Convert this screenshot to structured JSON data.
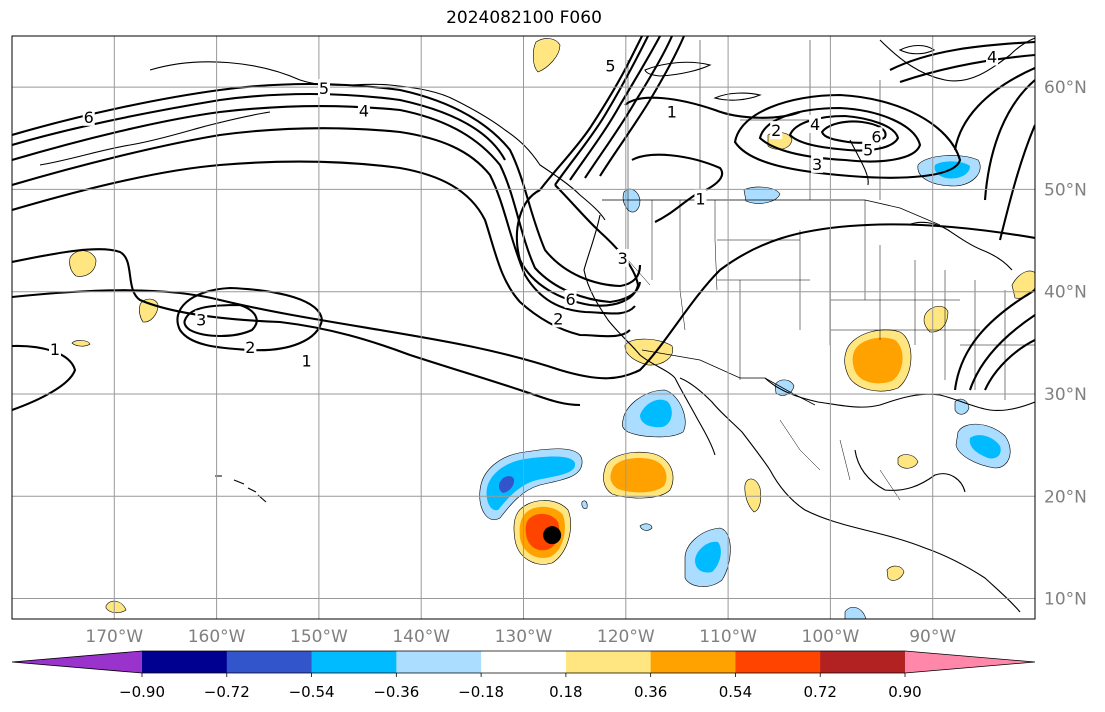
{
  "title": "2024082100 F060",
  "map": {
    "projection": "plate-carree",
    "lon_range": [
      -180,
      -80
    ],
    "lat_range": [
      8,
      65
    ],
    "lon_ticks": [
      {
        "lon": -170,
        "label": "170°W"
      },
      {
        "lon": -160,
        "label": "160°W"
      },
      {
        "lon": -150,
        "label": "150°W"
      },
      {
        "lon": -140,
        "label": "140°W"
      },
      {
        "lon": -130,
        "label": "130°W"
      },
      {
        "lon": -120,
        "label": "120°W"
      },
      {
        "lon": -110,
        "label": "110°W"
      },
      {
        "lon": -100,
        "label": "100°W"
      },
      {
        "lon": -90,
        "label": "90°W"
      }
    ],
    "lat_ticks": [
      {
        "lat": 60,
        "label": "60°N"
      },
      {
        "lat": 50,
        "label": "50°N"
      },
      {
        "lat": 40,
        "label": "40°N"
      },
      {
        "lat": 30,
        "label": "30°N"
      },
      {
        "lat": 20,
        "label": "20°N"
      },
      {
        "lat": 10,
        "label": "10°N"
      }
    ],
    "gridlines": true,
    "contour_labels": [
      {
        "text": "6",
        "lon": -172.5,
        "lat": 57
      },
      {
        "text": "5",
        "lon": -149.5,
        "lat": 59.8
      },
      {
        "text": "4",
        "lon": -145.6,
        "lat": 57.6
      },
      {
        "text": "5",
        "lon": -121.5,
        "lat": 62
      },
      {
        "text": "1",
        "lon": -115.5,
        "lat": 57.5
      },
      {
        "text": "2",
        "lon": -105.3,
        "lat": 55.7
      },
      {
        "text": "4",
        "lon": -101.5,
        "lat": 56.3
      },
      {
        "text": "6",
        "lon": -95.5,
        "lat": 55.1
      },
      {
        "text": "5",
        "lon": -96.3,
        "lat": 53.8
      },
      {
        "text": "3",
        "lon": -101.3,
        "lat": 52.4
      },
      {
        "text": "1",
        "lon": -112.7,
        "lat": 49
      },
      {
        "text": "3",
        "lon": -120.3,
        "lat": 43.2
      },
      {
        "text": "6",
        "lon": -125.4,
        "lat": 39.2
      },
      {
        "text": "2",
        "lon": -126.6,
        "lat": 37.3
      },
      {
        "text": "3",
        "lon": -161.5,
        "lat": 37.2
      },
      {
        "text": "2",
        "lon": -156.7,
        "lat": 34.5
      },
      {
        "text": "1",
        "lon": -151.2,
        "lat": 33.2
      },
      {
        "text": "1",
        "lon": -175.8,
        "lat": 34.3
      },
      {
        "text": "4",
        "lon": -84.2,
        "lat": 62.9
      }
    ],
    "storm_marker": {
      "lon": -127.2,
      "lat": 16.2
    }
  },
  "colorbar": {
    "colors": [
      "#9933cc",
      "#000090",
      "#3355cc",
      "#00bbff",
      "#aaddff",
      "#ffffff",
      "#ffe680",
      "#ffa200",
      "#ff4400",
      "#b22222",
      "#ff88aa"
    ],
    "tick_labels": [
      "−0.90",
      "−0.72",
      "−0.54",
      "−0.36",
      "−0.18",
      "0.18",
      "0.36",
      "0.54",
      "0.72",
      "0.90"
    ]
  }
}
